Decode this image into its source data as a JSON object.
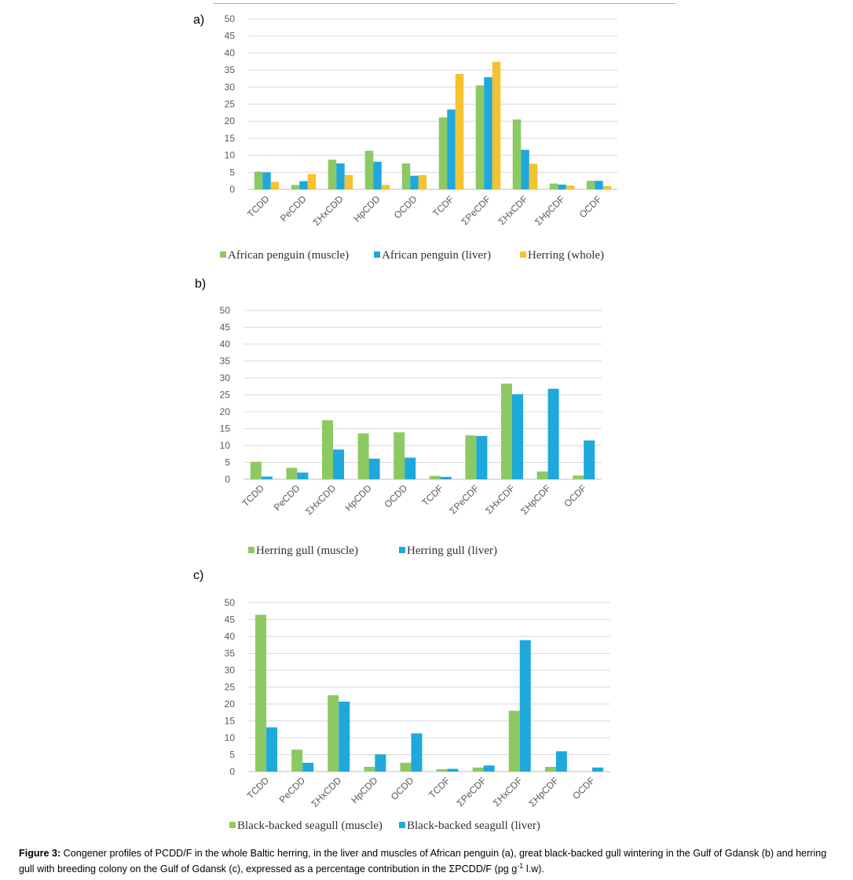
{
  "colors": {
    "green": "#8dc963",
    "blue": "#1fa8dc",
    "gold": "#f5c230",
    "grid": "#d9d9d9",
    "axis": "#bfbfbf"
  },
  "caption": {
    "label": "Figure 3:",
    "text": " Congener profiles of PCDD/F in the whole Baltic herring, in the liver and muscles of African penguin (a), great black-backed gull wintering in the Gulf of Gdansk (b) and herring gull with breeding colony on the Gulf of Gdansk (c), expressed as a percentage contribution in the ΣPCDD/F (pg g",
    "superscript": "-1",
    "text_end": " l.w)."
  },
  "chart_data": [
    {
      "panel": "a)",
      "type": "bar",
      "categories": [
        "TCDD",
        "PeCDD",
        "ΣHxCDD",
        "HpCDD",
        "OCDD",
        "TCDF",
        "ΣPeCDF",
        "ΣHxCDF",
        "ΣHpCDF",
        "OCDF"
      ],
      "ylim": [
        0,
        50
      ],
      "yticks": [
        "0",
        "5",
        "10",
        "15",
        "20",
        "25",
        "30",
        "35",
        "40",
        "45",
        "50"
      ],
      "grid": true,
      "legend_position": "bottom",
      "series": [
        {
          "name": "African penguin (muscle)",
          "color": "#8dc963",
          "values": [
            5.2,
            1.3,
            8.7,
            11.3,
            7.6,
            21.1,
            30.5,
            20.5,
            1.7,
            2.5
          ]
        },
        {
          "name": "African penguin (liver)",
          "color": "#1fa8dc",
          "values": [
            5.0,
            2.4,
            7.6,
            8.1,
            4.0,
            23.4,
            32.9,
            11.6,
            1.4,
            2.5
          ]
        },
        {
          "name": "Herring (whole)",
          "color": "#f5c230",
          "values": [
            2.2,
            4.5,
            4.2,
            1.3,
            4.2,
            33.9,
            37.4,
            7.5,
            1.1,
            1.0
          ]
        }
      ]
    },
    {
      "panel": "b)",
      "type": "bar",
      "categories": [
        "TCDD",
        "PeCDD",
        "ΣHxCDD",
        "HpCDD",
        "OCDD",
        "TCDF",
        "ΣPeCDF",
        "ΣHxCDF",
        "ΣHpCDF",
        "OCDF"
      ],
      "ylim": [
        0,
        50
      ],
      "yticks": [
        "0",
        "5",
        "10",
        "15",
        "20",
        "25",
        "30",
        "35",
        "40",
        "45",
        "50"
      ],
      "grid": true,
      "legend_position": "bottom",
      "series": [
        {
          "name": "Herring gull (muscle)",
          "color": "#8dc963",
          "values": [
            5.2,
            3.4,
            17.5,
            13.6,
            13.9,
            1.0,
            13.0,
            28.3,
            2.3,
            1.1
          ]
        },
        {
          "name": "Herring gull (liver)",
          "color": "#1fa8dc",
          "values": [
            0.8,
            2.0,
            8.8,
            6.1,
            6.4,
            0.7,
            12.8,
            25.2,
            26.8,
            11.5
          ]
        }
      ]
    },
    {
      "panel": "c)",
      "type": "bar",
      "categories": [
        "TCDD",
        "PeCDD",
        "ΣHxCDD",
        "HpCDD",
        "OCDD",
        "TCDF",
        "ΣPeCDF",
        "ΣHxCDF",
        "ΣHpCDF",
        "OCDF"
      ],
      "ylim": [
        0,
        50
      ],
      "yticks": [
        "0",
        "5",
        "10",
        "15",
        "20",
        "25",
        "30",
        "35",
        "40",
        "45",
        "50"
      ],
      "grid": true,
      "legend_position": "bottom",
      "series": [
        {
          "name": "Black-backed seagull (muscle)",
          "color": "#8dc963",
          "values": [
            46.4,
            6.5,
            22.6,
            1.4,
            2.6,
            0.7,
            1.2,
            18.0,
            1.4,
            0.0
          ]
        },
        {
          "name": "Black-backed seagull (liver)",
          "color": "#1fa8dc",
          "values": [
            13.1,
            2.6,
            20.7,
            5.1,
            11.3,
            0.8,
            1.8,
            38.9,
            6.0,
            1.2
          ]
        }
      ]
    }
  ]
}
